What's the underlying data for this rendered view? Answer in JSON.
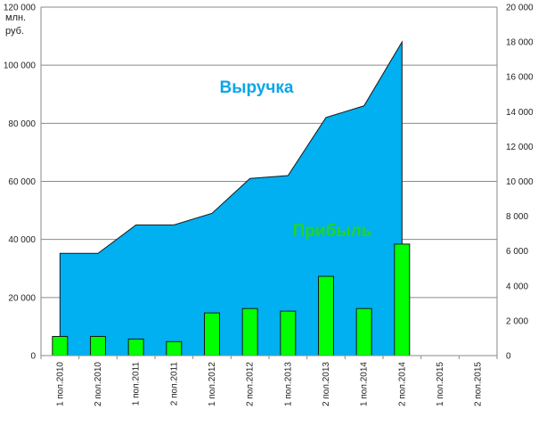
{
  "chart_data": {
    "type": "area+bar",
    "categories": [
      "1 пол.2010",
      "2 пол.2010",
      "1 пол.2011",
      "2 пол.2011",
      "1 пол.2012",
      "2 пол.2012",
      "1 пол.2013",
      "2 пол.2013",
      "1 пол.2014",
      "2 пол.2014",
      "1 пол.2015",
      "2 пол.2015"
    ],
    "unit_label": [
      "млн.",
      "руб."
    ],
    "series": [
      {
        "name": "Выручка",
        "type": "area",
        "axis": "left",
        "color": "#00b0f0",
        "label_color": "#0aa6e6",
        "values": [
          35200,
          35200,
          45000,
          45000,
          49000,
          61000,
          62000,
          82000,
          86000,
          108000,
          null,
          null
        ]
      },
      {
        "name": "Прибыль",
        "type": "bar",
        "axis": "right",
        "color": "#00ff00",
        "label_color": "#22d422",
        "values": [
          1100,
          1100,
          950,
          800,
          2450,
          2700,
          2550,
          4550,
          2700,
          6400,
          null,
          null
        ]
      }
    ],
    "y_left": {
      "min": 0,
      "max": 120000,
      "step": 20000,
      "ticks": [
        "0",
        "20 000",
        "40 000",
        "60 000",
        "80 000",
        "100 000",
        "120 000"
      ]
    },
    "y_right": {
      "min": 0,
      "max": 20000,
      "step": 2000,
      "ticks": [
        "0",
        "2 000",
        "4 000",
        "6 000",
        "8 000",
        "10 000",
        "12 000",
        "14 000",
        "16 000",
        "18 000",
        "20 000"
      ]
    },
    "grid": true,
    "legend": "none"
  }
}
